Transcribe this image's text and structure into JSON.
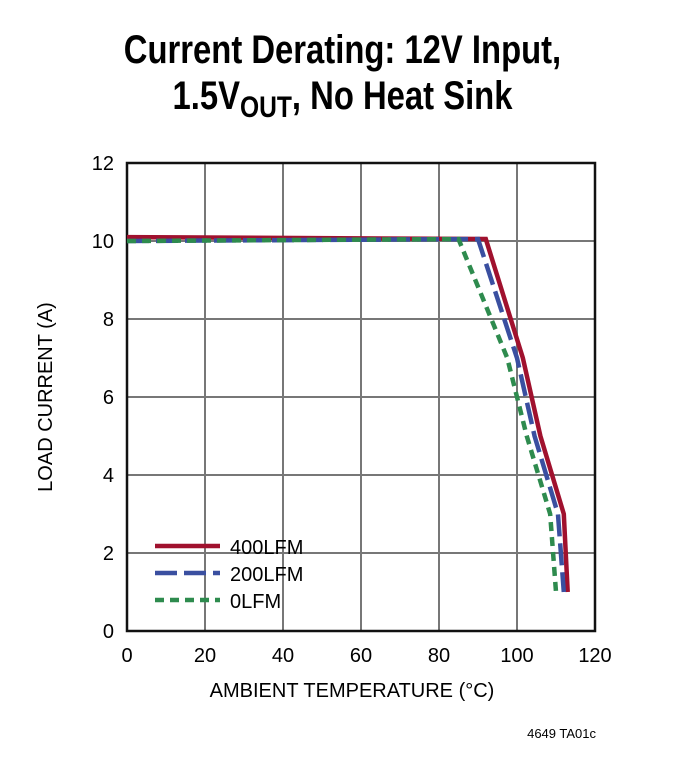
{
  "chart_data": {
    "type": "line",
    "title_line1": "Current Derating: 12V Input,",
    "title_line2_prefix": "1.5V",
    "title_line2_sub": "OUT",
    "title_line2_suffix": ", No Heat Sink",
    "xlabel": "AMBIENT TEMPERATURE (°C)",
    "ylabel": "LOAD CURRENT (A)",
    "xlim": [
      0,
      120
    ],
    "ylim": [
      0,
      12
    ],
    "xticks": [
      "0",
      "20",
      "40",
      "60",
      "80",
      "100",
      "120"
    ],
    "yticks": [
      "0",
      "2",
      "4",
      "6",
      "8",
      "10",
      "12"
    ],
    "grid": true,
    "legend_position": "bottom-left",
    "series": [
      {
        "name": "400LFM",
        "color": "#a0112e",
        "style": "solid",
        "points": [
          [
            0,
            10.1
          ],
          [
            92,
            10.05
          ],
          [
            101.5,
            7
          ],
          [
            106,
            5
          ],
          [
            112,
            3
          ],
          [
            113,
            1
          ]
        ]
      },
      {
        "name": "200LFM",
        "color": "#3a4fa0",
        "style": "dashed",
        "points": [
          [
            0,
            10
          ],
          [
            90,
            10.05
          ],
          [
            100,
            7
          ],
          [
            104.5,
            5
          ],
          [
            110.5,
            3
          ],
          [
            112,
            1
          ]
        ]
      },
      {
        "name": "0LFM",
        "color": "#2e8b4e",
        "style": "dotted",
        "points": [
          [
            0,
            10
          ],
          [
            85,
            10.05
          ],
          [
            97.5,
            7
          ],
          [
            102.5,
            5
          ],
          [
            108.5,
            3
          ],
          [
            110,
            1
          ]
        ]
      }
    ],
    "footnote": "4649 TA01c"
  }
}
